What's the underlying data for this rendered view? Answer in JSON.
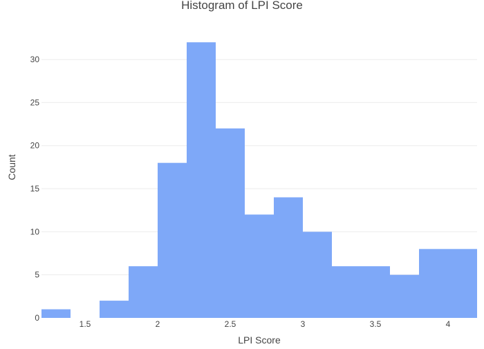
{
  "chart_data": {
    "type": "bar",
    "title": "Histogram of LPI Score",
    "xlabel": "LPI Score",
    "ylabel": "Count",
    "bins": [
      {
        "x0": 1.2,
        "x1": 1.4,
        "count": 1
      },
      {
        "x0": 1.4,
        "x1": 1.6,
        "count": 0
      },
      {
        "x0": 1.6,
        "x1": 1.8,
        "count": 2
      },
      {
        "x0": 1.8,
        "x1": 2.0,
        "count": 6
      },
      {
        "x0": 2.0,
        "x1": 2.2,
        "count": 18
      },
      {
        "x0": 2.2,
        "x1": 2.4,
        "count": 32
      },
      {
        "x0": 2.4,
        "x1": 2.6,
        "count": 22
      },
      {
        "x0": 2.6,
        "x1": 2.8,
        "count": 12
      },
      {
        "x0": 2.8,
        "x1": 3.0,
        "count": 14
      },
      {
        "x0": 3.0,
        "x1": 3.2,
        "count": 10
      },
      {
        "x0": 3.2,
        "x1": 3.4,
        "count": 6
      },
      {
        "x0": 3.4,
        "x1": 3.6,
        "count": 6
      },
      {
        "x0": 3.6,
        "x1": 3.8,
        "count": 5
      },
      {
        "x0": 3.8,
        "x1": 4.0,
        "count": 8
      },
      {
        "x0": 4.0,
        "x1": 4.2,
        "count": 8
      }
    ],
    "xlim": [
      1.2,
      4.2
    ],
    "ylim": [
      0,
      33.7
    ],
    "xticks": [
      1.5,
      2,
      2.5,
      3,
      3.5,
      4
    ],
    "xtick_labels": [
      "1.5",
      "2",
      "2.5",
      "3",
      "3.5",
      "4"
    ],
    "yticks": [
      0,
      5,
      10,
      15,
      20,
      25,
      30
    ],
    "ytick_labels": [
      "0",
      "5",
      "10",
      "15",
      "20",
      "25",
      "30"
    ],
    "grid": true,
    "bar_color": "#7ea8f8"
  }
}
